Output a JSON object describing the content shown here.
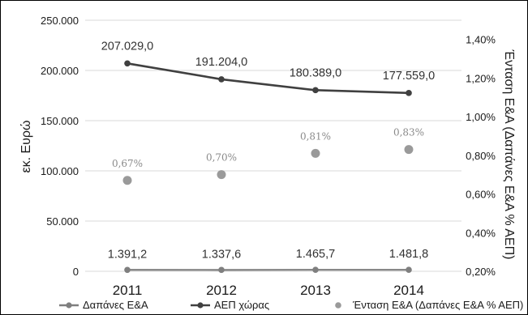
{
  "chart_data": {
    "type": "line",
    "title": "",
    "x": [
      "2011",
      "2012",
      "2013",
      "2014"
    ],
    "ylabel_left": "εκ. Ευρώ",
    "ylabel_right": "Ένταση Ε&Α (Δαπάνες Ε&Α % ΑΕΠ)",
    "ylim_left": [
      0,
      250000
    ],
    "ylim_right": [
      0.2,
      1.4
    ],
    "left_ticks": [
      "0",
      "50.000",
      "100.000",
      "150.000",
      "200.000",
      "250.000"
    ],
    "right_ticks": [
      "0,20%",
      "0,40%",
      "0,60%",
      "0,80%",
      "1,00%",
      "1,20%",
      "1,40%"
    ],
    "grid": true,
    "legend_position": "bottom",
    "series": [
      {
        "name": "Δαπάνες Ε&Α",
        "axis": "left",
        "kind": "line",
        "values": [
          1391.2,
          1337.6,
          1465.7,
          1481.8
        ],
        "labels": [
          "1.391,2",
          "1.337,6",
          "1.465,7",
          "1.481,8"
        ],
        "color": "#7f7f7f"
      },
      {
        "name": "ΑΕΠ χώρας",
        "axis": "left",
        "kind": "line",
        "values": [
          207029.0,
          191204.0,
          180389.0,
          177559.0
        ],
        "labels": [
          "207.029,0",
          "191.204,0",
          "180.389,0",
          "177.559,0"
        ],
        "color": "#404040"
      },
      {
        "name": "Ένταση Ε&Α (Δαπάνες Ε&Α % ΑΕΠ)",
        "axis": "right",
        "kind": "scatter",
        "values": [
          0.67,
          0.7,
          0.81,
          0.83
        ],
        "labels": [
          "0,67%",
          "0,70%",
          "0,81%",
          "0,83%"
        ],
        "color": "#9a9a9a"
      }
    ]
  }
}
